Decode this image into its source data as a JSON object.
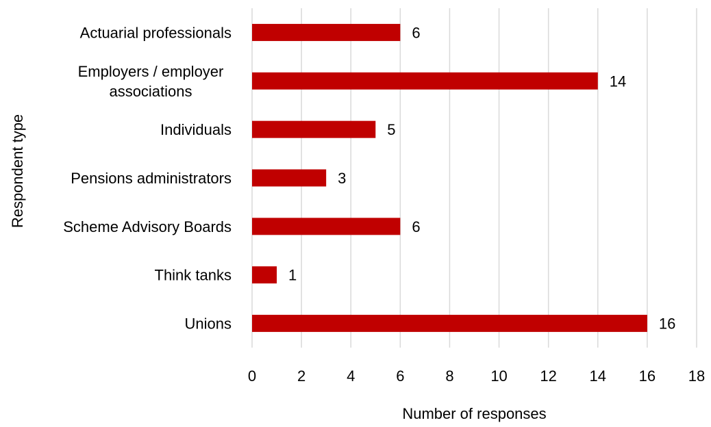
{
  "chart_data": {
    "type": "bar",
    "orientation": "horizontal",
    "categories": [
      [
        "Actuarial professionals"
      ],
      [
        "Employers / employer",
        "associations"
      ],
      [
        "Individuals"
      ],
      [
        "Pensions administrators"
      ],
      [
        "Scheme Advisory Boards"
      ],
      [
        "Think tanks"
      ],
      [
        "Unions"
      ]
    ],
    "values": [
      6,
      14,
      5,
      3,
      6,
      1,
      16
    ],
    "xlabel": "Number of responses",
    "ylabel": "Respondent type",
    "xlim": [
      0,
      18
    ],
    "xticks": [
      0,
      2,
      4,
      6,
      8,
      10,
      12,
      14,
      16,
      18
    ],
    "grid": true,
    "legend": "none",
    "bar_color": "#c00000",
    "grid_color": "#d9d9d9"
  }
}
